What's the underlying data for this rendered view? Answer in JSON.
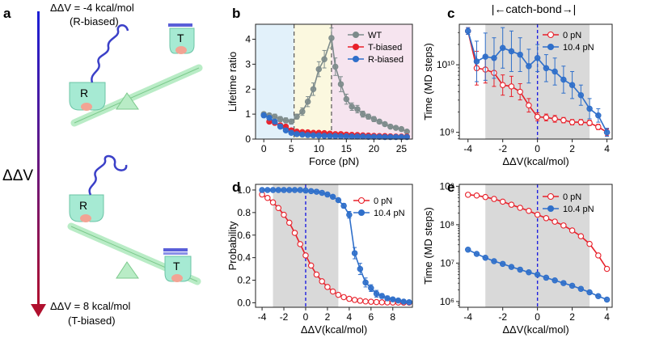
{
  "panels": {
    "a": {
      "letter": "a",
      "top_label_1": "ΔΔV = -4 kcal/mol",
      "top_label_2": "(R-biased)",
      "axis_label": "ΔΔV",
      "bottom_label_1": "ΔΔV = 8 kcal/mol",
      "bottom_label_2": "(T-biased)",
      "state_R": "R",
      "state_T": "T"
    },
    "b": {
      "letter": "b"
    },
    "c": {
      "letter": "c",
      "bracket_label": "|←catch-bond→|"
    },
    "d": {
      "letter": "d"
    },
    "e": {
      "letter": "e"
    }
  },
  "chart_data": [
    {
      "id": "b",
      "type": "line",
      "xlabel": "Force (pN)",
      "ylabel": "Lifetime ratio",
      "xlim": [
        -1.5,
        27
      ],
      "ylim": [
        0,
        4.6
      ],
      "xticks": [
        0,
        5,
        10,
        15,
        20,
        25
      ],
      "yticks": [
        0,
        1,
        2,
        3,
        4
      ],
      "vlines": [
        5.5,
        12.3
      ],
      "shaded_regions": [
        {
          "from": -1.5,
          "to": 5.5,
          "color": "#e2f1fa"
        },
        {
          "from": 5.5,
          "to": 12.3,
          "color": "#fbf8df"
        },
        {
          "from": 12.3,
          "to": 27,
          "color": "#f6e4ef"
        }
      ],
      "series": [
        {
          "name": "WT",
          "color": "#7d8b8b",
          "x": [
            0,
            1,
            2,
            3,
            4,
            5,
            6,
            7,
            8,
            9,
            10,
            11,
            12.3,
            13,
            14,
            15,
            16,
            17,
            18,
            19,
            20,
            21,
            22,
            23,
            24,
            25,
            26
          ],
          "y": [
            1.0,
            0.95,
            0.9,
            0.8,
            0.75,
            0.7,
            0.9,
            1.1,
            1.5,
            2.0,
            2.8,
            3.2,
            4.05,
            2.9,
            2.2,
            1.6,
            1.3,
            1.2,
            1.0,
            0.9,
            0.8,
            0.7,
            0.6,
            0.5,
            0.45,
            0.4,
            0.3
          ],
          "err": [
            0.08,
            0.08,
            0.1,
            0.1,
            0.1,
            0.1,
            0.1,
            0.15,
            0.2,
            0.25,
            0.3,
            0.35,
            0.4,
            0.35,
            0.3,
            0.2,
            0.15,
            0.15,
            0.12,
            0.1,
            0.1,
            0.08,
            0.08,
            0.06,
            0.06,
            0.05,
            0.05
          ]
        },
        {
          "name": "T-biased",
          "color": "#e8202a",
          "x": [
            1,
            2,
            3,
            4,
            5,
            6,
            7,
            8,
            9,
            10,
            11,
            12,
            13,
            14,
            15,
            16,
            17,
            18,
            19,
            20,
            21,
            22,
            23,
            24,
            25,
            26
          ],
          "y": [
            0.7,
            0.65,
            0.55,
            0.5,
            0.35,
            0.3,
            0.28,
            0.27,
            0.25,
            0.25,
            0.24,
            0.22,
            0.2,
            0.2,
            0.18,
            0.17,
            0.16,
            0.15,
            0.14,
            0.13,
            0.12,
            0.12,
            0.11,
            0.1,
            0.1,
            0.1
          ],
          "err": [
            0.05,
            0.05,
            0.05,
            0.05,
            0.05,
            0.04,
            0.04,
            0.04,
            0.04,
            0.04,
            0.04,
            0.04,
            0.03,
            0.03,
            0.03,
            0.03,
            0.03,
            0.03,
            0.03,
            0.03,
            0.02,
            0.02,
            0.02,
            0.02,
            0.02,
            0.02
          ]
        },
        {
          "name": "R-biased",
          "color": "#2f6fca",
          "x": [
            0,
            1,
            2,
            3,
            4,
            5,
            6,
            7,
            8,
            9,
            10,
            11,
            12,
            13,
            14,
            15,
            16,
            17,
            18,
            19,
            20,
            21,
            22,
            23,
            24,
            25,
            26
          ],
          "y": [
            0.95,
            0.85,
            0.7,
            0.5,
            0.35,
            0.25,
            0.2,
            0.18,
            0.16,
            0.15,
            0.14,
            0.13,
            0.12,
            0.12,
            0.11,
            0.11,
            0.1,
            0.1,
            0.1,
            0.09,
            0.09,
            0.09,
            0.08,
            0.08,
            0.08,
            0.08,
            0.08
          ],
          "err": [
            0.05,
            0.06,
            0.06,
            0.05,
            0.05,
            0.04,
            0.04,
            0.03,
            0.03,
            0.03,
            0.03,
            0.03,
            0.03,
            0.03,
            0.02,
            0.02,
            0.02,
            0.02,
            0.02,
            0.02,
            0.02,
            0.02,
            0.02,
            0.02,
            0.02,
            0.02,
            0.02
          ]
        }
      ]
    },
    {
      "id": "c",
      "type": "line",
      "xlabel": "ΔΔV(kcal/mol)",
      "ylabel": "Time (MD steps)",
      "xlim": [
        -4.5,
        4.3
      ],
      "ylim_log10": [
        8.9,
        10.6
      ],
      "xticks": [
        -4,
        -2,
        0,
        2,
        4
      ],
      "yticks_log10": [
        9,
        10
      ],
      "ytick_labels": [
        "10⁹",
        "10¹⁰"
      ],
      "shaded": [
        -3,
        3
      ],
      "dashed_x": 0,
      "series": [
        {
          "name": "0 pN",
          "color": "#e8202a",
          "marker": "open",
          "x": [
            -4,
            -3.5,
            -3,
            -2.5,
            -2,
            -1.5,
            -1,
            -0.5,
            0,
            0.5,
            1,
            1.5,
            2,
            2.5,
            3,
            3.5,
            4
          ],
          "y_log10": [
            10.5,
            9.95,
            9.93,
            9.88,
            9.7,
            9.68,
            9.6,
            9.4,
            9.23,
            9.22,
            9.2,
            9.18,
            9.15,
            9.15,
            9.14,
            9.08,
            9.0
          ],
          "err_log10": [
            0.05,
            0.25,
            0.2,
            0.2,
            0.15,
            0.15,
            0.12,
            0.1,
            0.06,
            0.05,
            0.05,
            0.04,
            0.04,
            0.04,
            0.04,
            0.04,
            0.05
          ]
        },
        {
          "name": "10.4 pN",
          "color": "#2f6fca",
          "marker": "filled",
          "x": [
            -4,
            -3.5,
            -3,
            -2.5,
            -2,
            -1.5,
            -1,
            -0.5,
            0,
            0.5,
            1,
            1.5,
            2,
            2.5,
            3,
            3.5,
            4
          ],
          "y_log10": [
            10.5,
            10.05,
            10.12,
            10.1,
            10.25,
            10.2,
            10.15,
            9.98,
            10.1,
            9.95,
            9.9,
            9.78,
            9.7,
            9.55,
            9.35,
            9.25,
            9.0
          ],
          "err_log10": [
            0.05,
            0.3,
            0.35,
            0.3,
            0.3,
            0.3,
            0.25,
            0.25,
            0.2,
            0.2,
            0.2,
            0.2,
            0.2,
            0.15,
            0.15,
            0.1,
            0.06
          ]
        }
      ]
    },
    {
      "id": "d",
      "type": "line",
      "xlabel": "ΔΔV(kcal/mol)",
      "ylabel": "Probability",
      "xlim": [
        -4.6,
        9.8
      ],
      "ylim": [
        -0.04,
        1.05
      ],
      "xticks": [
        -4,
        -2,
        0,
        2,
        4,
        6,
        8
      ],
      "yticks": [
        0.0,
        0.2,
        0.4,
        0.6,
        0.8,
        1.0
      ],
      "ytick_labels": [
        "0.0",
        "0.2",
        "0.4",
        "0.6",
        "0.8",
        "1.0"
      ],
      "shaded": [
        -3,
        3
      ],
      "dashed_x": 0,
      "series": [
        {
          "name": "0 pN",
          "color": "#e8202a",
          "marker": "open",
          "x": [
            -4,
            -3.5,
            -3,
            -2.5,
            -2,
            -1.5,
            -1,
            -0.5,
            0,
            0.5,
            1,
            1.5,
            2,
            2.5,
            3,
            3.5,
            4,
            4.5,
            5,
            5.5,
            6,
            6.5,
            7,
            7.5,
            8,
            8.5,
            9,
            9.5
          ],
          "y": [
            0.96,
            0.93,
            0.89,
            0.84,
            0.78,
            0.71,
            0.62,
            0.52,
            0.42,
            0.33,
            0.25,
            0.19,
            0.14,
            0.1,
            0.07,
            0.05,
            0.035,
            0.025,
            0.018,
            0.012,
            0.009,
            0.006,
            0.004,
            0.003,
            0.002,
            0.002,
            0.001,
            0.001
          ]
        },
        {
          "name": "10.4 pN",
          "color": "#2f6fca",
          "marker": "filled",
          "x": [
            -4,
            -3.5,
            -3,
            -2.5,
            -2,
            -1.5,
            -1,
            -0.5,
            0,
            0.5,
            1,
            1.5,
            2,
            2.5,
            3,
            3.5,
            4,
            4.5,
            5,
            5.5,
            6,
            6.5,
            7,
            7.5,
            8,
            8.5,
            9,
            9.5
          ],
          "y": [
            1.0,
            1.0,
            1.0,
            1.0,
            1.0,
            1.0,
            1.0,
            1.0,
            0.995,
            0.99,
            0.985,
            0.975,
            0.96,
            0.94,
            0.91,
            0.86,
            0.78,
            0.44,
            0.3,
            0.18,
            0.13,
            0.08,
            0.06,
            0.04,
            0.03,
            0.02,
            0.01,
            0.005
          ],
          "err": [
            0,
            0,
            0,
            0,
            0,
            0,
            0,
            0,
            0,
            0,
            0,
            0,
            0.005,
            0.01,
            0.01,
            0.02,
            0.03,
            0.05,
            0.05,
            0.04,
            0.03,
            0.03,
            0.02,
            0.02,
            0.01,
            0.01,
            0.01,
            0.005
          ]
        }
      ]
    },
    {
      "id": "e",
      "type": "line",
      "xlabel": "ΔΔV(kcal/mol)",
      "ylabel": "Time (MD steps)",
      "xlim": [
        -4.5,
        4.3
      ],
      "ylim_log10": [
        5.85,
        9.05
      ],
      "xticks": [
        -4,
        -2,
        0,
        2,
        4
      ],
      "yticks_log10": [
        6,
        7,
        8,
        9
      ],
      "ytick_labels": [
        "10⁶",
        "10⁷",
        "10⁸",
        "10⁹"
      ],
      "shaded": [
        -3,
        3
      ],
      "dashed_x": 0,
      "series": [
        {
          "name": "0 pN",
          "color": "#e8202a",
          "marker": "open",
          "x": [
            -4,
            -3.5,
            -3,
            -2.5,
            -2,
            -1.5,
            -1,
            -0.5,
            0,
            0.5,
            1,
            1.5,
            2,
            2.5,
            3,
            3.5,
            4
          ],
          "y_log10": [
            8.78,
            8.76,
            8.72,
            8.67,
            8.6,
            8.52,
            8.44,
            8.36,
            8.26,
            8.17,
            8.08,
            7.98,
            7.85,
            7.7,
            7.5,
            7.2,
            6.85
          ]
        },
        {
          "name": "10.4 pN",
          "color": "#2f6fca",
          "marker": "filled",
          "x": [
            -4,
            -3.5,
            -3,
            -2.5,
            -2,
            -1.5,
            -1,
            -0.5,
            0,
            0.5,
            1,
            1.5,
            2,
            2.5,
            3,
            3.5,
            4
          ],
          "y_log10": [
            7.35,
            7.24,
            7.14,
            7.05,
            6.98,
            6.9,
            6.83,
            6.76,
            6.7,
            6.62,
            6.55,
            6.48,
            6.41,
            6.33,
            6.24,
            6.14,
            6.05
          ]
        }
      ]
    }
  ]
}
